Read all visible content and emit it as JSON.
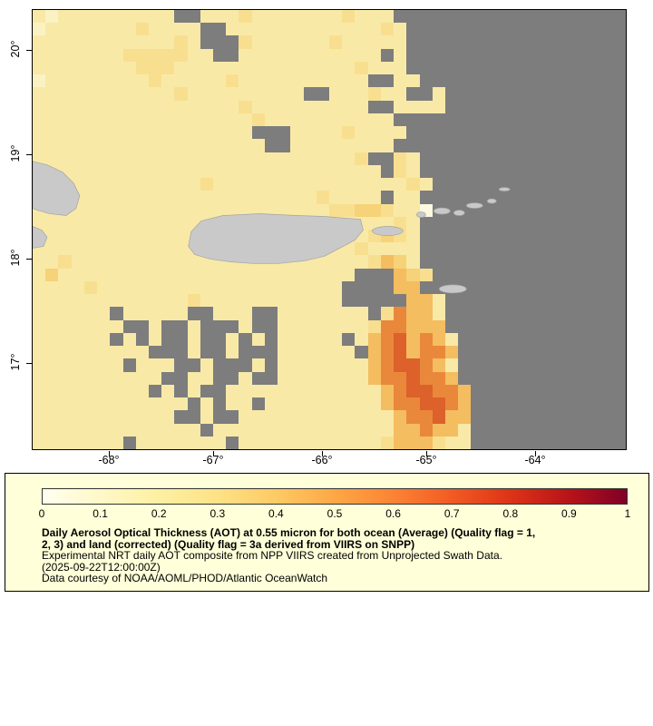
{
  "map": {
    "lat_labels": [
      "20°",
      "19°",
      "18°",
      "17°"
    ],
    "lon_labels": [
      "-68°",
      "-67°",
      "-66°",
      "-65°",
      "-64°"
    ],
    "land_color": "#c9c9c9",
    "no_data_color": "#7d7d7d"
  },
  "chart_data": {
    "type": "heatmap",
    "title": "Daily Aerosol Optical Thickness (AOT) at 0.55 micron (NPP VIIRS composite)",
    "value_range": [
      0,
      1
    ],
    "lat_ticks": [
      20,
      19,
      18,
      17
    ],
    "lon_ticks": [
      -68,
      -67,
      -66,
      -65,
      -64
    ],
    "grid_rows": 34,
    "grid_cols": 46,
    "no_data_char": ".",
    "palette": {
      ".": "#7d7d7d",
      "1": "#fdf8e0",
      "2": "#fbf2c4",
      "3": "#f9e9a7",
      "4": "#f8df8f",
      "5": "#f6d278",
      "6": "#f4bd60",
      "7": "#f0a64d",
      "8": "#e9883b",
      "9": "#dd612b"
    },
    "palette_aot_values": {
      "1": 0.03,
      "2": 0.07,
      "3": 0.1,
      "4": 0.15,
      "5": 0.2,
      "6": 0.27,
      "7": 0.33,
      "8": 0.42,
      "9": 0.52,
      ".": null
    },
    "grid": [
      "32333333333..333433333334333..................",
      "2333333343333..33333333333343.................",
      "3333333333343...4333333433333.................",
      "33333334444433..33333333333.3.................",
      "33333333444333333333333334333.................",
      "23333333343333343333333333..33................",
      "333333333334333333333..333433..3..............",
      "33333333333333334333333333..3333..............",
      "3333333333333333343333333333..................",
      "33333333333333333...333343333.................",
      "333333333333333333..33333333..................",
      "33333333333333333333333334..43................",
      "333333333333333333333333333.43................",
      "3333333333333433333333333333343...............",
      "333333333333333333333343333.33................",
      "3333333333333333333333344554331...............",
      "333333333333333333333333333343................",
      "333333333333333333333333334543................",
      "333333333333333333333333343333................",
      "334333333333333333333333334653................",
      "3533333333333333333333333...654...............",
      "333343333333333333333333....66................",
      "333333333333433333333333.....663..............",
      "333333.33333..333..3333333.48663..............",
      "3333333..3..3...3..3333333488666..............",
      "333333.3.3..3..3.3.33333.36896863.............",
      "333333333...3..3...333333.6896886.............",
      "3333333.333..3...3.33333336899863.............",
      "3333333333..33..3..33333336889886.............",
      "333333333.3.3..333333333333689 9886...........",
      "333333333333.3.33.333333333688 9986...........",
      "33333333333..3..33333333333368 8966...........",
      "3333333333333.3333333333333366 8663...........",
      "3333333.3333333.33333333333466 6433..........."
    ]
  },
  "legend": {
    "panel_color": "#ffffd9",
    "colorbar": {
      "tick_labels": [
        "0",
        "0.1",
        "0.2",
        "0.3",
        "0.4",
        "0.5",
        "0.6",
        "0.7",
        "0.8",
        "0.9",
        "1"
      ],
      "stops": [
        "#ffffef",
        "#fff8c8",
        "#fdf0a2",
        "#fde286",
        "#fdca64",
        "#fda746",
        "#fb8434",
        "#f25b23",
        "#dd3417",
        "#b81419",
        "#800026"
      ]
    },
    "text_lines": [
      {
        "text": "Daily Aerosol Optical Thickness (AOT) at 0.55 micron for both ocean (Average) (Quality flag = 1,",
        "bold": true
      },
      {
        "text": "2, 3) and land (corrected) (Quality flag = 3a derived from VIIRS on SNPP)",
        "bold": true
      },
      {
        "text": "Experimental NRT daily AOT composite from NPP VIIRS created from Unprojected Swath Data.",
        "bold": false
      },
      {
        "text": "(2025-09-22T12:00:00Z)",
        "bold": false
      },
      {
        "text": "Data courtesy of NOAA/AOML/PHOD/Atlantic OceanWatch",
        "bold": false
      }
    ]
  }
}
